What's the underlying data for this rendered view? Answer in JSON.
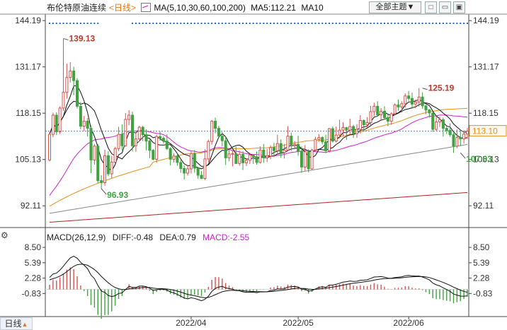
{
  "header": {
    "title": "布伦特原油连续",
    "period": "<日线>",
    "ma_label": "MA(5,10,30,60,100,200)",
    "ma5_label": "MA5:112.21",
    "ma10_label": "MA10"
  },
  "toolbar": {
    "theme_label": "全部主题▼",
    "btn1": "□",
    "btn2": "▭",
    "btn3": "▣"
  },
  "bottom_tab": {
    "label": "日线",
    "arrow": "▲"
  },
  "macd_header": {
    "label": "MACD(26,12,9)",
    "diff": "DIFF:-0.48",
    "dea": "DEA:0.79",
    "macd": "MACD:-2.55"
  },
  "colors": {
    "up": "#d9534f",
    "down": "#3fa33f",
    "ma5": "#111111",
    "ma10": "#111111",
    "ma30": "#cc22cc",
    "ma60": "#e8901a",
    "ma100": "#888888",
    "ma200": "#b22222",
    "current": "#e8901a",
    "dots": "#2266cc"
  },
  "chart_data": [
    {
      "type": "candlestick",
      "ylim": [
        86,
        146
      ],
      "yticks": [
        "144.19",
        "131.17",
        "118.15",
        "105.13",
        "92.11"
      ],
      "ytick_values": [
        144.19,
        131.17,
        118.15,
        105.13,
        92.11
      ],
      "xticks": [
        "2022/04",
        "2022/05",
        "2022/06"
      ],
      "xtick_index": [
        41,
        72,
        104
      ],
      "current_price": 113.1,
      "current_label": "113.10",
      "annotations": [
        {
          "text": "139.13",
          "index": 4,
          "value": 139.13
        },
        {
          "text": "96.93",
          "index": 15,
          "value": 96.93
        },
        {
          "text": "125.19",
          "index": 108,
          "value": 125.19
        },
        {
          "text": "107.03",
          "index": 119,
          "value": 107.03
        }
      ],
      "candles": [
        [
          105,
          112.2,
          104.6,
          112.8
        ],
        [
          112.2,
          117.6,
          111.4,
          118.3
        ],
        [
          117.6,
          112.9,
          112,
          118.4
        ],
        [
          112.9,
          119.6,
          112.3,
          120.1
        ],
        [
          119.6,
          124,
          118.8,
          139.1
        ],
        [
          124,
          128.2,
          122.2,
          132.1
        ],
        [
          128.2,
          130,
          126.8,
          132.5
        ],
        [
          130,
          127.3,
          123.2,
          131.2
        ],
        [
          127.3,
          120.1,
          119.5,
          128
        ],
        [
          120.1,
          114.5,
          113.6,
          121.3
        ],
        [
          114.5,
          115.9,
          113.1,
          117.4
        ],
        [
          115.9,
          113.9,
          111.6,
          116.8
        ],
        [
          113.9,
          105,
          101.3,
          114.7
        ],
        [
          105,
          108.9,
          103.7,
          109.5
        ],
        [
          108.9,
          99.2,
          98.5,
          109.5
        ],
        [
          99.2,
          98.6,
          96.9,
          100.7
        ],
        [
          98.6,
          106.2,
          97.8,
          107.9
        ],
        [
          106.2,
          101.1,
          100.5,
          107.5
        ],
        [
          101.1,
          104.4,
          99.8,
          106.2
        ],
        [
          104.4,
          108.2,
          104,
          108.7
        ],
        [
          108.2,
          112.2,
          107.5,
          114.3
        ],
        [
          112.2,
          109,
          107.7,
          115
        ],
        [
          109,
          116.4,
          108.7,
          118.2
        ],
        [
          116.4,
          117.6,
          114.8,
          119
        ],
        [
          117.6,
          109,
          107.4,
          118.6
        ],
        [
          109,
          110.9,
          107.3,
          112.9
        ],
        [
          110.9,
          114.2,
          110.2,
          114.6
        ],
        [
          114.2,
          112.1,
          110.3,
          114.6
        ],
        [
          112.1,
          110.3,
          107.7,
          113.6
        ],
        [
          110.3,
          107.7,
          105.5,
          110.8
        ],
        [
          107.7,
          105.2,
          104.9,
          108.1
        ],
        [
          105.2,
          111.6,
          104.2,
          112.1
        ],
        [
          111.6,
          111.1,
          110.4,
          113
        ],
        [
          111.1,
          110.3,
          109.6,
          111.7
        ],
        [
          110.3,
          108.2,
          107.8,
          112.2
        ],
        [
          108.2,
          105.2,
          103.5,
          108.6
        ],
        [
          105.2,
          106.1,
          104.3,
          106.9
        ],
        [
          106.1,
          104.3,
          103.4,
          106.8
        ],
        [
          104.3,
          102.6,
          101.4,
          105
        ],
        [
          102.6,
          101.3,
          99.5,
          103.5
        ],
        [
          101.3,
          102.5,
          100.6,
          103.6
        ],
        [
          102.5,
          106.8,
          101.2,
          107.4
        ],
        [
          106.8,
          102.7,
          101.4,
          107.8
        ],
        [
          102.7,
          100.7,
          99.7,
          103.1
        ],
        [
          100.7,
          99.8,
          99.6,
          101.9
        ],
        [
          99.8,
          105.3,
          99.3,
          108
        ],
        [
          105.3,
          110.2,
          104.4,
          110.7
        ],
        [
          110.2,
          115.9,
          109.3,
          116.2
        ],
        [
          115.9,
          113.9,
          112.5,
          116.9
        ],
        [
          113.9,
          111.7,
          111.1,
          114.6
        ],
        [
          111.7,
          110.4,
          108.8,
          112.9
        ],
        [
          110.4,
          105.6,
          103.6,
          111.6
        ],
        [
          105.6,
          106.7,
          104.6,
          108.1
        ],
        [
          106.7,
          106.8,
          103.2,
          107.7
        ],
        [
          106.8,
          104,
          103.9,
          108.7
        ],
        [
          104,
          106.6,
          103.4,
          107.6
        ],
        [
          106.6,
          104.2,
          102.2,
          107.5
        ],
        [
          104.2,
          104.9,
          103.3,
          105.3
        ],
        [
          104.9,
          106.4,
          103.9,
          107
        ],
        [
          106.4,
          105.9,
          103.9,
          106.6
        ],
        [
          105.9,
          104.3,
          103.7,
          107.4
        ],
        [
          104.3,
          107.8,
          104,
          108.8
        ],
        [
          107.8,
          105.6,
          104.2,
          109.5
        ],
        [
          105.6,
          106.1,
          104.4,
          108.1
        ],
        [
          106.1,
          108.5,
          105.2,
          109.1
        ],
        [
          108.5,
          107.6,
          105.8,
          109.8
        ],
        [
          107.6,
          109.6,
          106.5,
          112.1
        ],
        [
          109.6,
          107.1,
          105.6,
          110.8
        ],
        [
          107.1,
          107.8,
          105.4,
          109.5
        ],
        [
          107.8,
          111.7,
          107.4,
          114.5
        ],
        [
          111.7,
          109.1,
          107.6,
          112.7
        ],
        [
          109.1,
          109.4,
          108.4,
          110.3
        ],
        [
          109.4,
          107.5,
          106.2,
          111.8
        ],
        [
          107.5,
          103,
          101.4,
          108.8
        ],
        [
          103,
          107.3,
          102,
          109.2
        ],
        [
          107.3,
          102.5,
          101.5,
          108
        ],
        [
          102.5,
          107.8,
          102.3,
          108.1
        ],
        [
          107.8,
          110.8,
          107.7,
          111.5
        ],
        [
          110.8,
          111.3,
          110.1,
          112.3
        ],
        [
          111.3,
          110.1,
          109.4,
          111.7
        ],
        [
          110.1,
          107.6,
          106.9,
          112.1
        ],
        [
          107.6,
          113.8,
          107,
          114
        ],
        [
          113.8,
          110.3,
          109.9,
          114.4
        ],
        [
          110.3,
          112,
          109.9,
          114.4
        ],
        [
          112,
          113.4,
          111.1,
          116.3
        ],
        [
          113.4,
          114.1,
          111.7,
          115.6
        ],
        [
          114.1,
          113.4,
          110.6,
          114.3
        ],
        [
          113.4,
          114.4,
          112.2,
          116.6
        ],
        [
          114.4,
          112.4,
          111.2,
          114.9
        ],
        [
          112.4,
          113.6,
          111.2,
          115.1
        ],
        [
          113.6,
          116.1,
          112.4,
          117.6
        ],
        [
          116.1,
          114.9,
          113,
          116.4
        ],
        [
          114.9,
          115.5,
          114.2,
          117
        ],
        [
          115.5,
          118.6,
          114.4,
          120.2
        ],
        [
          118.6,
          120.1,
          117.4,
          121.1
        ],
        [
          120.1,
          117.7,
          117.2,
          121.5
        ],
        [
          117.7,
          118.7,
          116,
          119.6
        ],
        [
          118.7,
          116.9,
          116.3,
          120.1
        ],
        [
          116.9,
          115.9,
          114.5,
          117.8
        ],
        [
          115.9,
          118,
          114.9,
          118.4
        ],
        [
          118,
          120.5,
          117.6,
          120.9
        ],
        [
          120.5,
          119.9,
          118.9,
          122
        ],
        [
          119.9,
          120.8,
          118.4,
          121.5
        ],
        [
          120.8,
          123,
          119.7,
          123.7
        ],
        [
          123,
          122.3,
          121.6,
          124.4
        ],
        [
          122.3,
          120.7,
          119.4,
          123.9
        ],
        [
          120.7,
          121.3,
          119.6,
          122
        ],
        [
          121.3,
          122.7,
          120,
          125.2
        ],
        [
          122.7,
          120.2,
          119.4,
          124
        ],
        [
          120.2,
          119.1,
          117.9,
          120.5
        ],
        [
          119.1,
          118.2,
          116.9,
          119.3
        ],
        [
          118.2,
          113.6,
          112.9,
          118.5
        ],
        [
          113.6,
          115.7,
          113.2,
          117.6
        ],
        [
          115.7,
          116.3,
          114.3,
          117.1
        ],
        [
          116.3,
          113.9,
          111.6,
          116.9
        ],
        [
          113.9,
          113.3,
          112.3,
          114.4
        ],
        [
          113.3,
          112.1,
          111.5,
          115.3
        ],
        [
          112.1,
          108.9,
          107.0,
          112.6
        ],
        [
          108.9,
          111.3,
          108.3,
          113.6
        ],
        [
          111.3,
          110.9,
          108.9,
          113.2
        ],
        [
          110.9,
          112.3,
          109.6,
          113.4
        ],
        [
          112.3,
          113.1,
          110.9,
          114
        ]
      ]
    },
    {
      "type": "macd",
      "ylim": [
        -5.5,
        9.8
      ],
      "yticks": [
        "8.50",
        "5.39",
        "2.28",
        "-0.83"
      ],
      "ytick_values": [
        8.5,
        5.39,
        2.28,
        -0.83
      ],
      "diff": -0.48,
      "dea": 0.79,
      "macd": -2.55
    }
  ]
}
